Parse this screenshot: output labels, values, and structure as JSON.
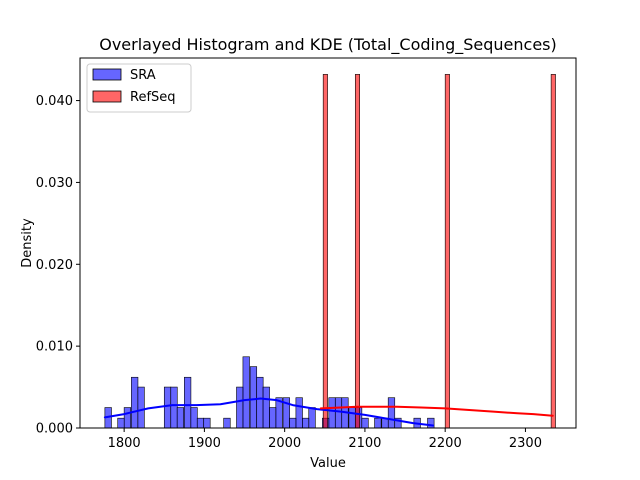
{
  "chart_data": {
    "type": "bar",
    "title": "Overlayed Histogram and KDE (Total_Coding_Sequences)",
    "xlabel": "Value",
    "ylabel": "Density",
    "xlim": [
      1745,
      2363
    ],
    "ylim": [
      0,
      0.0452
    ],
    "x_ticks": [
      1800,
      1900,
      2000,
      2100,
      2200,
      2300
    ],
    "x_tick_labels": [
      "1800",
      "1900",
      "2000",
      "2100",
      "2200",
      "2300"
    ],
    "y_ticks": [
      0,
      0.01,
      0.02,
      0.03,
      0.04
    ],
    "y_tick_labels": [
      "0.000",
      "0.010",
      "0.020",
      "0.030",
      "0.040"
    ],
    "legend_position": "top-left",
    "grid": false,
    "series": [
      {
        "name": "SRA",
        "color": "#0000ff",
        "bin_width": 8.2,
        "bins": [
          {
            "x": 1776,
            "density": 0.0025
          },
          {
            "x": 1792,
            "density": 0.0012
          },
          {
            "x": 1800,
            "density": 0.0025
          },
          {
            "x": 1809,
            "density": 0.0062
          },
          {
            "x": 1817,
            "density": 0.005
          },
          {
            "x": 1850,
            "density": 0.005
          },
          {
            "x": 1858,
            "density": 0.005
          },
          {
            "x": 1866,
            "density": 0.0025
          },
          {
            "x": 1875,
            "density": 0.0062
          },
          {
            "x": 1883,
            "density": 0.0025
          },
          {
            "x": 1891,
            "density": 0.0012
          },
          {
            "x": 1899,
            "density": 0.0012
          },
          {
            "x": 1924,
            "density": 0.0012
          },
          {
            "x": 1940,
            "density": 0.005
          },
          {
            "x": 1948,
            "density": 0.0087
          },
          {
            "x": 1957,
            "density": 0.0075
          },
          {
            "x": 1965,
            "density": 0.0062
          },
          {
            "x": 1973,
            "density": 0.005
          },
          {
            "x": 1981,
            "density": 0.0025
          },
          {
            "x": 1989,
            "density": 0.0037
          },
          {
            "x": 1998,
            "density": 0.0037
          },
          {
            "x": 2006,
            "density": 0.0012
          },
          {
            "x": 2014,
            "density": 0.0037
          },
          {
            "x": 2022,
            "density": 0.0012
          },
          {
            "x": 2030,
            "density": 0.0025
          },
          {
            "x": 2047,
            "density": 0.0012
          },
          {
            "x": 2055,
            "density": 0.0037
          },
          {
            "x": 2063,
            "density": 0.0037
          },
          {
            "x": 2071,
            "density": 0.0037
          },
          {
            "x": 2080,
            "density": 0.0025
          },
          {
            "x": 2088,
            "density": 0.0025
          },
          {
            "x": 2096,
            "density": 0.0012
          },
          {
            "x": 2112,
            "density": 0.0012
          },
          {
            "x": 2121,
            "density": 0.0012
          },
          {
            "x": 2129,
            "density": 0.0037
          },
          {
            "x": 2137,
            "density": 0.0012
          },
          {
            "x": 2161,
            "density": 0.0012
          },
          {
            "x": 2178,
            "density": 0.0012
          }
        ],
        "kde": {
          "x": [
            1776,
            1800,
            1830,
            1860,
            1890,
            1920,
            1950,
            1970,
            1990,
            2010,
            2040,
            2070,
            2100,
            2130,
            2160,
            2185
          ],
          "y": [
            0.0013,
            0.0017,
            0.0024,
            0.0028,
            0.0028,
            0.0029,
            0.0034,
            0.0036,
            0.0034,
            0.0028,
            0.0023,
            0.002,
            0.0016,
            0.0011,
            0.0006,
            0.0003
          ]
        }
      },
      {
        "name": "RefSeq",
        "color": "#ff0000",
        "bin_width": 5.5,
        "bins": [
          {
            "x": 2048,
            "density": 0.0432
          },
          {
            "x": 2088,
            "density": 0.0432
          },
          {
            "x": 2200,
            "density": 0.0432
          },
          {
            "x": 2332,
            "density": 0.0432
          }
        ],
        "kde": {
          "x": [
            2045,
            2070,
            2090,
            2110,
            2140,
            2170,
            2200,
            2230,
            2260,
            2290,
            2310,
            2334
          ],
          "y": [
            0.0024,
            0.0025,
            0.0026,
            0.0026,
            0.0026,
            0.0025,
            0.0024,
            0.0022,
            0.002,
            0.0018,
            0.0017,
            0.0015
          ]
        }
      }
    ]
  }
}
